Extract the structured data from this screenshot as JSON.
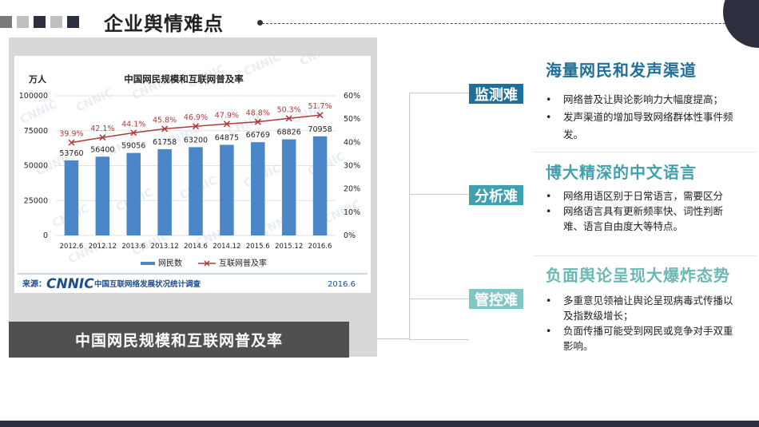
{
  "header": {
    "title": "企业舆情难点",
    "squares": [
      "#7a7a7a",
      "#bfbfbf",
      "#2e3040",
      "#bfbfbf",
      "#2e3040"
    ]
  },
  "chart": {
    "unit": "万人",
    "caption": "中国网民规模和互联网普及率",
    "source_label": "来源：",
    "source_logo": "CNNIC",
    "source_text": "中国互联网络发展状况统计调查",
    "date": "2016.6",
    "watermark": "CNNIC"
  },
  "chart_data": {
    "type": "bar",
    "title": "中国网民规模和互联网普及率",
    "categories": [
      "2012.6",
      "2012.12",
      "2013.6",
      "2013.12",
      "2014.6",
      "2014.12",
      "2015.6",
      "2015.12",
      "2016.6"
    ],
    "series": [
      {
        "name": "网民数",
        "type": "bar",
        "axis": "left",
        "values": [
          53760,
          56400,
          59056,
          61758,
          63200,
          64875,
          66769,
          68826,
          70958
        ],
        "color": "#4a86c8"
      },
      {
        "name": "互联网普及率",
        "type": "line",
        "axis": "right",
        "values": [
          39.9,
          42.1,
          44.1,
          45.8,
          46.9,
          47.9,
          48.8,
          50.3,
          51.7
        ],
        "labels": [
          "39.9%",
          "42.1%",
          "44.1%",
          "45.8%",
          "46.9%",
          "47.9%",
          "48.8%",
          "50.3%",
          "51.7%"
        ],
        "color": "#b03a3a"
      }
    ],
    "ylim": [
      0,
      100000
    ],
    "yticks": [
      "0",
      "25000",
      "50000",
      "75000",
      "100000"
    ],
    "y2lim": [
      0,
      60
    ],
    "y2ticks": [
      "0%",
      "10%",
      "20%",
      "30%",
      "40%",
      "50%",
      "60%"
    ],
    "grid": true,
    "legend": "bottom"
  },
  "difficulties": [
    {
      "tag": "监测难",
      "heading": "海量网民和发声渠道",
      "bullets": [
        "网络普及让舆论影响力大幅度提高；",
        "发声渠道的增加导致网络群体性事件频发。"
      ]
    },
    {
      "tag": "分析难",
      "heading": "博大精深的中文语言",
      "bullets": [
        "网络用语区别于日常语言，需要区分",
        "网络语言具有更新频率快、词性判断难、语言自由度大等特点。"
      ]
    },
    {
      "tag": "管控难",
      "heading": "负面舆论呈现大爆炸态势",
      "bullets": [
        "多重意见领袖让舆论呈现病毒式传播以及指数级增长；",
        "负面传播可能受到网民或竞争对手双重影响。"
      ]
    }
  ]
}
